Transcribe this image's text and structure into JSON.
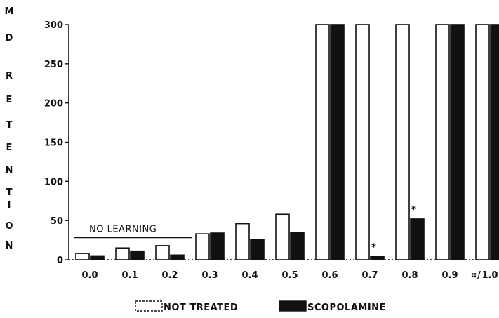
{
  "chart_data": {
    "type": "bar",
    "ylabel": "MD RETENTION",
    "xlabel": "",
    "x_axis_tail": "⠶/",
    "categories": [
      "0.0",
      "0.1",
      "0.2",
      "0.3",
      "0.4",
      "0.5",
      "0.6",
      "0.7",
      "0.8",
      "0.9",
      "1.0"
    ],
    "ylim": [
      0,
      300
    ],
    "yticks": [
      0,
      50,
      100,
      150,
      200,
      250,
      300
    ],
    "grid": false,
    "legend_position": "bottom-center",
    "series": [
      {
        "name": "NOT TREATED",
        "fill": "#ffffff",
        "values": [
          8,
          15,
          18,
          33,
          46,
          58,
          300,
          300,
          300,
          300,
          300
        ]
      },
      {
        "name": "SCOPOLAMINE",
        "fill": "#111111",
        "values": [
          5,
          11,
          6,
          34,
          26,
          35,
          300,
          4,
          52,
          300,
          300
        ]
      }
    ],
    "significance_markers": [
      {
        "category": "0.7",
        "series": "SCOPOLAMINE",
        "symbol": "*"
      },
      {
        "category": "0.8",
        "series": "SCOPOLAMINE",
        "symbol": "*"
      }
    ],
    "annotation": {
      "text": "NO LEARNING",
      "value": 30,
      "from": "0.0",
      "to": "0.2"
    }
  }
}
